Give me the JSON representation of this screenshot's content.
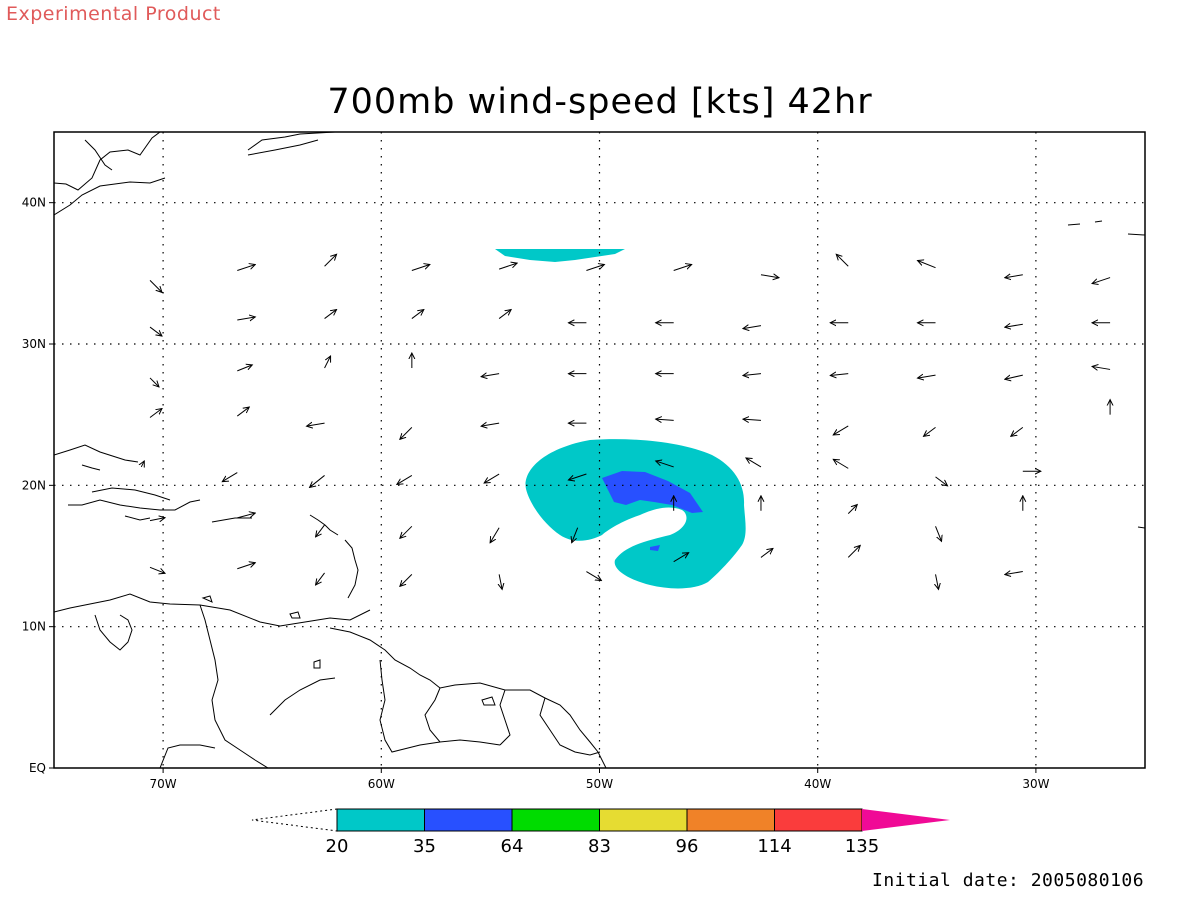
{
  "banner": "Experimental Product",
  "title": "700mb wind-speed [kts] 42hr",
  "initial_date": "Initial date: 2005080106",
  "map": {
    "lon_range": [
      -75,
      -25
    ],
    "lat_range": [
      0,
      45
    ],
    "lon_ticks": [
      {
        "value": -70,
        "label": "70W"
      },
      {
        "value": -60,
        "label": "60W"
      },
      {
        "value": -50,
        "label": "50W"
      },
      {
        "value": -40,
        "label": "40W"
      },
      {
        "value": -30,
        "label": "30W"
      }
    ],
    "lat_ticks": [
      {
        "value": 0,
        "label": "EQ"
      },
      {
        "value": 10,
        "label": "10N"
      },
      {
        "value": 20,
        "label": "20N"
      },
      {
        "value": 30,
        "label": "30N"
      },
      {
        "value": 40,
        "label": "40N"
      }
    ],
    "grid": "dotted",
    "features": [
      "coastlines",
      "wind-vectors",
      "shaded-wind-speed"
    ]
  },
  "colorbar": {
    "colors": [
      "#00c8c8",
      "#2850ff",
      "#00dc00",
      "#e6dc32",
      "#f08228",
      "#fa3c3c",
      "#f00a96"
    ],
    "labels": [
      "20",
      "35",
      "64",
      "83",
      "96",
      "114",
      "135"
    ]
  },
  "wind_vectors": [
    {
      "lon": -70.6,
      "lat": 34.5,
      "u": 2,
      "v": -2
    },
    {
      "lon": -66.6,
      "lat": 35.2,
      "u": 3,
      "v": 1
    },
    {
      "lon": -62.6,
      "lat": 35.5,
      "u": 2,
      "v": 2
    },
    {
      "lon": -58.6,
      "lat": 35.2,
      "u": 3,
      "v": 1
    },
    {
      "lon": -54.6,
      "lat": 35.3,
      "u": 3,
      "v": 1
    },
    {
      "lon": -50.6,
      "lat": 35.2,
      "u": 3,
      "v": 1
    },
    {
      "lon": -46.6,
      "lat": 35.2,
      "u": 3,
      "v": 1
    },
    {
      "lon": -42.6,
      "lat": 34.9,
      "u": 3,
      "v": -0.5
    },
    {
      "lon": -38.6,
      "lat": 35.5,
      "u": -2,
      "v": 2
    },
    {
      "lon": -34.6,
      "lat": 35.4,
      "u": -3,
      "v": 1.2
    },
    {
      "lon": -30.6,
      "lat": 34.9,
      "u": -3,
      "v": -0.5
    },
    {
      "lon": -26.6,
      "lat": 34.7,
      "u": -3,
      "v": -1
    },
    {
      "lon": -70.6,
      "lat": 31.2,
      "u": 2,
      "v": -1.5
    },
    {
      "lon": -66.6,
      "lat": 31.7,
      "u": 3,
      "v": 0.5
    },
    {
      "lon": -62.6,
      "lat": 31.8,
      "u": 2,
      "v": 1.5
    },
    {
      "lon": -58.6,
      "lat": 31.8,
      "u": 2,
      "v": 1.5
    },
    {
      "lon": -54.6,
      "lat": 31.8,
      "u": 2,
      "v": 1.5
    },
    {
      "lon": -50.6,
      "lat": 31.5,
      "u": -3,
      "v": 0
    },
    {
      "lon": -46.6,
      "lat": 31.5,
      "u": -3,
      "v": 0
    },
    {
      "lon": -42.6,
      "lat": 31.3,
      "u": -3,
      "v": -0.5
    },
    {
      "lon": -38.6,
      "lat": 31.5,
      "u": -3,
      "v": 0
    },
    {
      "lon": -34.6,
      "lat": 31.5,
      "u": -3,
      "v": 0
    },
    {
      "lon": -30.6,
      "lat": 31.4,
      "u": -3,
      "v": -0.5
    },
    {
      "lon": -26.6,
      "lat": 31.5,
      "u": -3,
      "v": 0
    },
    {
      "lon": -70.6,
      "lat": 27.6,
      "u": 1.5,
      "v": -1.5
    },
    {
      "lon": -66.6,
      "lat": 28.1,
      "u": 2.5,
      "v": 1
    },
    {
      "lon": -62.6,
      "lat": 28.3,
      "u": 1,
      "v": 2
    },
    {
      "lon": -58.6,
      "lat": 28.3,
      "u": 0,
      "v": 2.5
    },
    {
      "lon": -54.6,
      "lat": 27.9,
      "u": -3,
      "v": -0.5
    },
    {
      "lon": -50.6,
      "lat": 27.9,
      "u": -3,
      "v": 0
    },
    {
      "lon": -46.6,
      "lat": 27.9,
      "u": -3,
      "v": 0
    },
    {
      "lon": -42.6,
      "lat": 27.9,
      "u": -3,
      "v": -0.3
    },
    {
      "lon": -38.6,
      "lat": 27.9,
      "u": -3,
      "v": -0.3
    },
    {
      "lon": -34.6,
      "lat": 27.8,
      "u": -3,
      "v": -0.5
    },
    {
      "lon": -30.6,
      "lat": 27.8,
      "u": -3,
      "v": -0.7
    },
    {
      "lon": -26.6,
      "lat": 28.2,
      "u": -3,
      "v": 0.5
    },
    {
      "lon": -70.6,
      "lat": 24.8,
      "u": 2,
      "v": 1.5
    },
    {
      "lon": -66.6,
      "lat": 24.9,
      "u": 2,
      "v": 1.5
    },
    {
      "lon": -62.6,
      "lat": 24.4,
      "u": -3,
      "v": -0.5
    },
    {
      "lon": -58.6,
      "lat": 24.1,
      "u": -2,
      "v": -2
    },
    {
      "lon": -54.6,
      "lat": 24.4,
      "u": -3,
      "v": -0.5
    },
    {
      "lon": -50.6,
      "lat": 24.4,
      "u": -3,
      "v": 0
    },
    {
      "lon": -46.6,
      "lat": 24.6,
      "u": -3,
      "v": 0.2
    },
    {
      "lon": -42.6,
      "lat": 24.6,
      "u": -3,
      "v": 0.2
    },
    {
      "lon": -38.6,
      "lat": 24.2,
      "u": -2.5,
      "v": -1.5
    },
    {
      "lon": -34.6,
      "lat": 24.1,
      "u": -2,
      "v": -1.5
    },
    {
      "lon": -30.6,
      "lat": 24.1,
      "u": -2,
      "v": -1.5
    },
    {
      "lon": -26.6,
      "lat": 25.0,
      "u": 0,
      "v": 2.5
    },
    {
      "lon": -71.0,
      "lat": 21.3,
      "u": 0.5,
      "v": 1
    },
    {
      "lon": -66.6,
      "lat": 20.9,
      "u": -2.5,
      "v": -1.5
    },
    {
      "lon": -62.6,
      "lat": 20.7,
      "u": -2.5,
      "v": -2
    },
    {
      "lon": -58.6,
      "lat": 20.7,
      "u": -2.5,
      "v": -1.5
    },
    {
      "lon": -54.6,
      "lat": 20.8,
      "u": -2.5,
      "v": -1.5
    },
    {
      "lon": -50.6,
      "lat": 20.8,
      "u": -3,
      "v": -1
    },
    {
      "lon": -46.6,
      "lat": 21.3,
      "u": -3,
      "v": 1
    },
    {
      "lon": -42.6,
      "lat": 21.3,
      "u": -2.5,
      "v": 1.5
    },
    {
      "lon": -38.6,
      "lat": 21.2,
      "u": -2.5,
      "v": 1.5
    },
    {
      "lon": -34.6,
      "lat": 20.6,
      "u": 2,
      "v": -1.5
    },
    {
      "lon": -30.6,
      "lat": 21.0,
      "u": 3,
      "v": 0
    },
    {
      "lon": -70.6,
      "lat": 17.5,
      "u": 2.5,
      "v": 0.5
    },
    {
      "lon": -66.6,
      "lat": 17.7,
      "u": 3,
      "v": 0.8
    },
    {
      "lon": -62.6,
      "lat": 17.2,
      "u": -1.5,
      "v": -2
    },
    {
      "lon": -58.6,
      "lat": 17.1,
      "u": -2,
      "v": -2
    },
    {
      "lon": -54.6,
      "lat": 17.0,
      "u": -1.5,
      "v": -2.5
    },
    {
      "lon": -51.0,
      "lat": 17.0,
      "u": -1,
      "v": -2.5
    },
    {
      "lon": -46.6,
      "lat": 18.2,
      "u": 0,
      "v": 2.5
    },
    {
      "lon": -42.6,
      "lat": 18.2,
      "u": 0,
      "v": 2.5
    },
    {
      "lon": -38.6,
      "lat": 18.0,
      "u": 1.5,
      "v": 1.5
    },
    {
      "lon": -34.6,
      "lat": 17.1,
      "u": 1,
      "v": -2.5
    },
    {
      "lon": -30.6,
      "lat": 18.2,
      "u": 0,
      "v": 2.5
    },
    {
      "lon": -70.6,
      "lat": 14.2,
      "u": 2.5,
      "v": -1
    },
    {
      "lon": -66.6,
      "lat": 14.1,
      "u": 3,
      "v": 1
    },
    {
      "lon": -62.6,
      "lat": 13.8,
      "u": -1.5,
      "v": -2
    },
    {
      "lon": -58.6,
      "lat": 13.7,
      "u": -2,
      "v": -2
    },
    {
      "lon": -54.6,
      "lat": 13.7,
      "u": 0.5,
      "v": -2.5
    },
    {
      "lon": -50.6,
      "lat": 13.9,
      "u": 2.5,
      "v": -1.5
    },
    {
      "lon": -46.6,
      "lat": 14.6,
      "u": 2.5,
      "v": 1.5
    },
    {
      "lon": -42.6,
      "lat": 14.9,
      "u": 2,
      "v": 1.5
    },
    {
      "lon": -38.6,
      "lat": 14.9,
      "u": 2,
      "v": 2
    },
    {
      "lon": -34.6,
      "lat": 13.7,
      "u": 0.5,
      "v": -2.5
    },
    {
      "lon": -30.6,
      "lat": 13.9,
      "u": -3,
      "v": -0.5
    }
  ]
}
